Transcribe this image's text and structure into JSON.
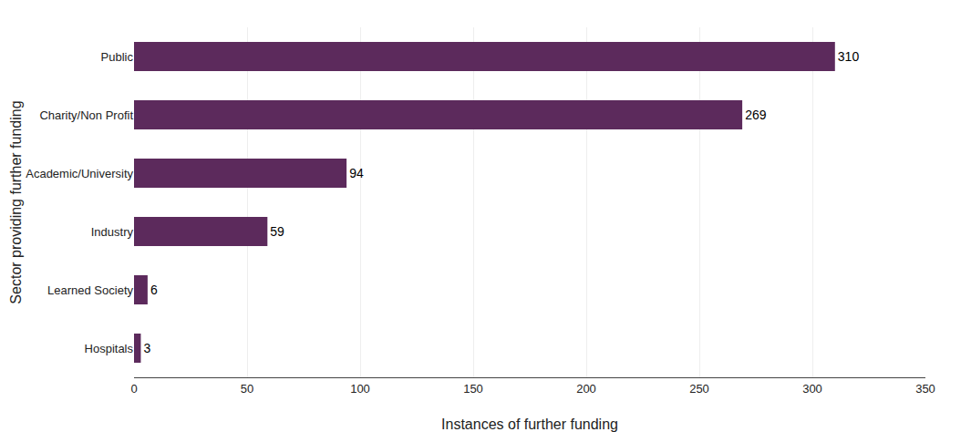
{
  "chart_data": {
    "type": "bar",
    "orientation": "horizontal",
    "categories": [
      "Public",
      "Charity/Non Profit",
      "Academic/University",
      "Industry",
      "Learned Society",
      "Hospitals"
    ],
    "values": [
      310,
      269,
      94,
      59,
      6,
      3
    ],
    "color": "#5c2a5c",
    "xlabel": "Instances of further funding",
    "ylabel": "Sector providing further funding",
    "xlim": [
      0,
      350
    ],
    "xticks": [
      0,
      50,
      100,
      150,
      200,
      250,
      300,
      350
    ],
    "grid": true,
    "data_labels": true
  }
}
